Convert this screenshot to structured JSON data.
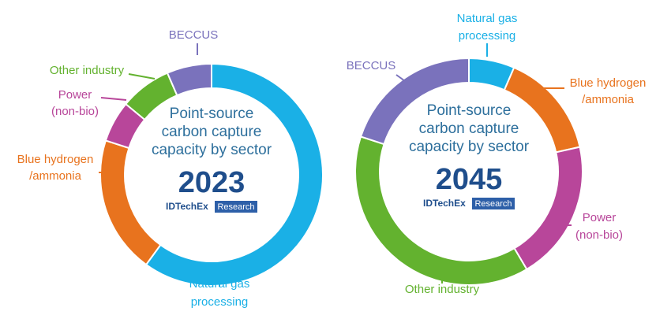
{
  "chart_data": [
    {
      "type": "donut",
      "center_text": [
        "Point-source",
        "carbon capture",
        "capacity by sector"
      ],
      "year": "2023",
      "brand": {
        "name": "IDTechEx",
        "badge": "Research"
      },
      "slices": [
        {
          "name": "Natural gas processing",
          "label_lines": [
            "Natural gas",
            "processing"
          ],
          "value": 60,
          "color": "#1ab0e6"
        },
        {
          "name": "Blue hydrogen /ammonia",
          "label_lines": [
            "Blue hydrogen",
            "/ammonia"
          ],
          "value": 20,
          "color": "#e8731e"
        },
        {
          "name": "Power (non-bio)",
          "label_lines": [
            "Power",
            "(non-bio)"
          ],
          "value": 6,
          "color": "#b8469a"
        },
        {
          "name": "Other industry",
          "label_lines": [
            "Other industry"
          ],
          "value": 7.5,
          "color": "#63b22f"
        },
        {
          "name": "BECCUS",
          "label_lines": [
            "BECCUS"
          ],
          "value": 6.5,
          "color": "#7a72bc"
        }
      ]
    },
    {
      "type": "donut",
      "center_text": [
        "Point-source",
        "carbon capture",
        "capacity by sector"
      ],
      "year": "2045",
      "brand": {
        "name": "IDTechEx",
        "badge": "Research"
      },
      "slices": [
        {
          "name": "Natural gas processing",
          "label_lines": [
            "Natural gas",
            "processing"
          ],
          "value": 6.5,
          "color": "#1ab0e6"
        },
        {
          "name": "Blue hydrogen /ammonia",
          "label_lines": [
            "Blue hydrogen",
            "/ammonia"
          ],
          "value": 15,
          "color": "#e8731e"
        },
        {
          "name": "Power (non-bio)",
          "label_lines": [
            "Power",
            "(non-bio)"
          ],
          "value": 20,
          "color": "#b8469a"
        },
        {
          "name": "Other industry",
          "label_lines": [
            "Other industry"
          ],
          "value": 38.5,
          "color": "#63b22f"
        },
        {
          "name": "BECCUS",
          "label_lines": [
            "BECCUS"
          ],
          "value": 20,
          "color": "#7a72bc"
        }
      ]
    }
  ]
}
